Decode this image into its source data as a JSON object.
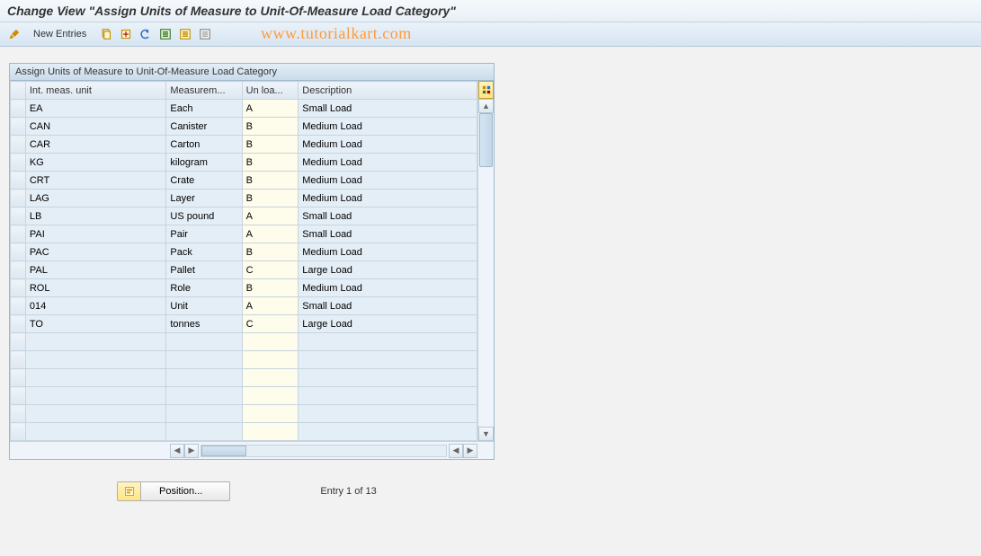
{
  "header": {
    "title": "Change View \"Assign Units of Measure to Unit-Of-Measure Load Category\""
  },
  "toolbar": {
    "new_entries_label": "New Entries"
  },
  "watermark": "www.tutorialkart.com",
  "panel": {
    "title": "Assign Units of Measure to Unit-Of-Measure Load Category",
    "columns": {
      "unit": "Int. meas. unit",
      "meas": "Measurem...",
      "load": "Un loa...",
      "desc": "Description"
    },
    "rows": [
      {
        "unit": "EA",
        "meas": "Each",
        "load": "A",
        "desc": "Small Load"
      },
      {
        "unit": "CAN",
        "meas": "Canister",
        "load": "B",
        "desc": "Medium Load"
      },
      {
        "unit": "CAR",
        "meas": "Carton",
        "load": "B",
        "desc": "Medium Load"
      },
      {
        "unit": "KG",
        "meas": "kilogram",
        "load": "B",
        "desc": "Medium Load"
      },
      {
        "unit": "CRT",
        "meas": "Crate",
        "load": "B",
        "desc": "Medium Load"
      },
      {
        "unit": "LAG",
        "meas": "Layer",
        "load": "B",
        "desc": "Medium Load"
      },
      {
        "unit": "LB",
        "meas": "US pound",
        "load": "A",
        "desc": "Small Load"
      },
      {
        "unit": "PAI",
        "meas": "Pair",
        "load": "A",
        "desc": "Small Load"
      },
      {
        "unit": "PAC",
        "meas": "Pack",
        "load": "B",
        "desc": "Medium Load"
      },
      {
        "unit": "PAL",
        "meas": "Pallet",
        "load": "C",
        "desc": "Large Load"
      },
      {
        "unit": "ROL",
        "meas": "Role",
        "load": "B",
        "desc": "Medium Load"
      },
      {
        "unit": "014",
        "meas": "Unit",
        "load": "A",
        "desc": "Small Load"
      },
      {
        "unit": "TO",
        "meas": "tonnes",
        "load": "C",
        "desc": "Large Load"
      }
    ],
    "empty_rows": 6
  },
  "footer": {
    "position_label": "Position...",
    "entry_label": "Entry 1 of 13"
  },
  "colors": {
    "header_bg": "#e8f0f7",
    "toolbar_bg": "#d6e5f2",
    "panel_border": "#9db8cc",
    "thead_bg": "#dde8f1",
    "cell_blue": "#e4eef6",
    "cell_yellow": "#fefceb",
    "watermark": "#ff9a3c"
  }
}
